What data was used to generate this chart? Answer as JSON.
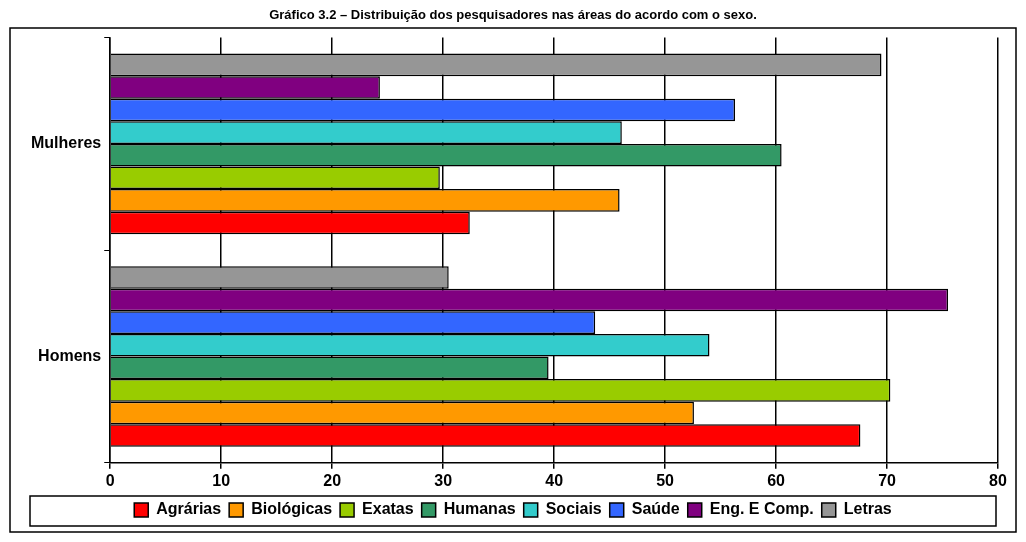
{
  "chart_data": {
    "type": "bar",
    "orientation": "horizontal",
    "title": "Gráfico 3.2 – Distribuição dos pesquisadores nas áreas do acordo com o sexo.",
    "categories": [
      "Mulheres",
      "Homens"
    ],
    "series": [
      {
        "name": "Agrárias",
        "color": "#ff0000",
        "values": [
          32.4,
          67.6
        ]
      },
      {
        "name": "Biológicas",
        "color": "#ff9900",
        "values": [
          45.9,
          52.6
        ]
      },
      {
        "name": "Exatas",
        "color": "#99cc00",
        "values": [
          29.7,
          70.3
        ]
      },
      {
        "name": "Humanas",
        "color": "#339966",
        "values": [
          60.5,
          39.5
        ]
      },
      {
        "name": "Sociais",
        "color": "#33cccc",
        "values": [
          46.1,
          54.0
        ]
      },
      {
        "name": "Saúde",
        "color": "#3366ff",
        "values": [
          56.3,
          43.7
        ]
      },
      {
        "name": "Eng. E Comp.",
        "color": "#800080",
        "values": [
          24.3,
          75.5
        ]
      },
      {
        "name": "Letras",
        "color": "#969696",
        "values": [
          69.5,
          30.5
        ]
      }
    ],
    "xlim": [
      0,
      80
    ],
    "xticks": [
      0,
      10,
      20,
      30,
      40,
      50,
      60,
      70,
      80
    ],
    "grid": "x",
    "legend": "bottom"
  }
}
